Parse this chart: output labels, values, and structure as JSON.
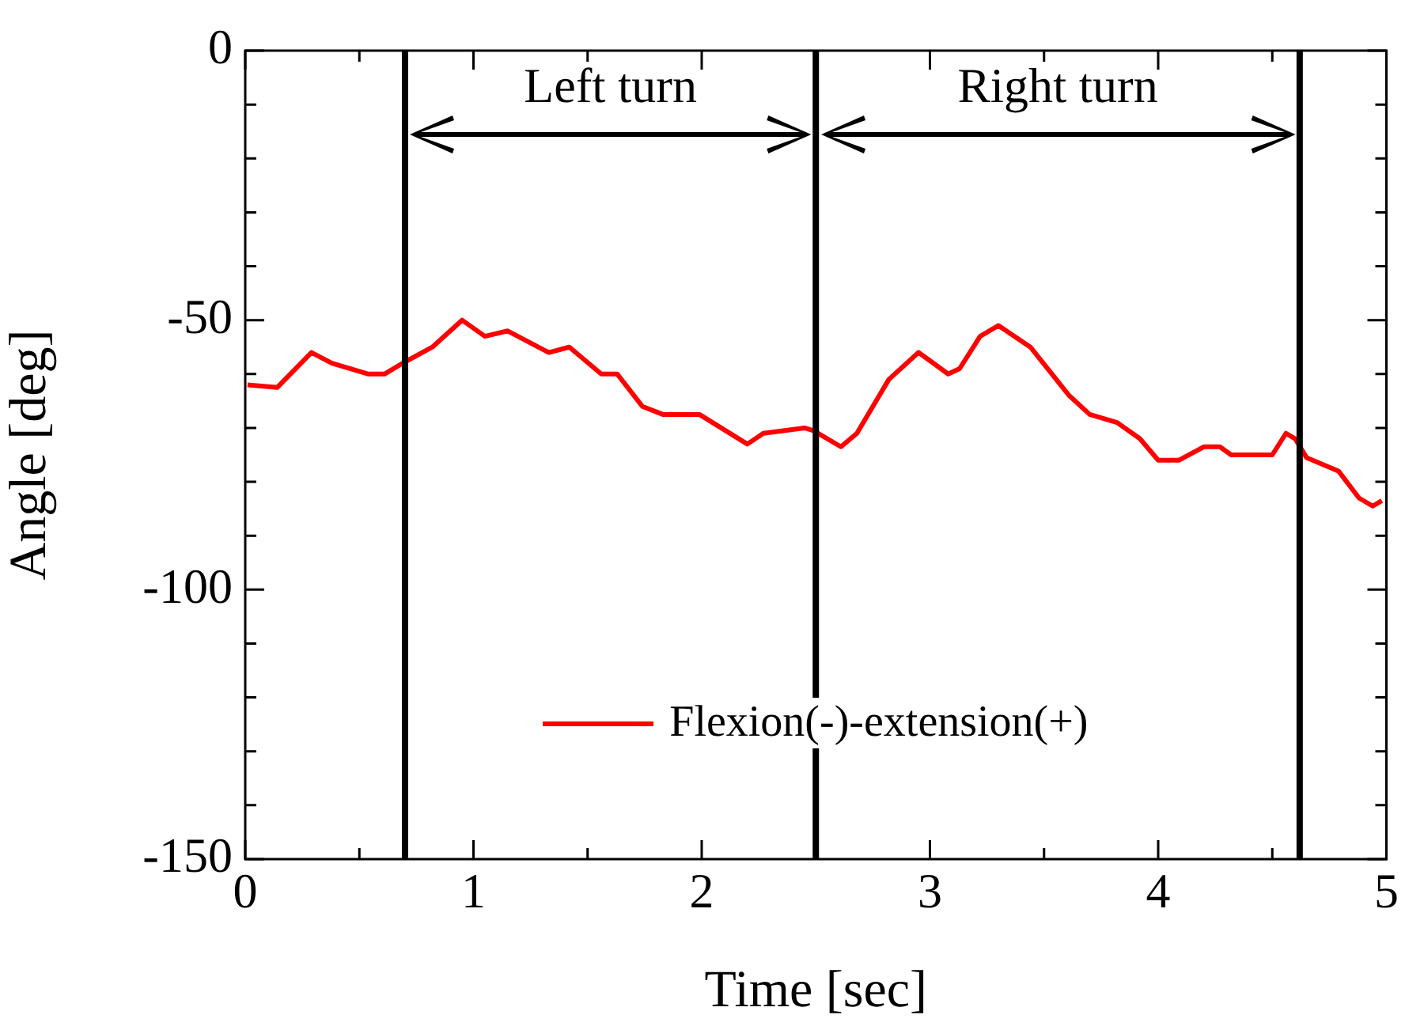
{
  "chart_data": {
    "type": "line",
    "xlabel": "Time [sec]",
    "ylabel": "Angle [deg]",
    "xlim": [
      0,
      5
    ],
    "ylim": [
      -150,
      0
    ],
    "xticks": [
      0,
      {
        "value": 0.5,
        "label": null
      },
      1,
      {
        "value": 1.5,
        "label": null
      },
      2,
      {
        "value": 2.5,
        "label": null
      },
      3,
      {
        "value": 3.5,
        "label": null
      },
      4,
      {
        "value": 4.5,
        "label": null
      },
      5
    ],
    "yticks": [
      -150,
      {
        "value": -140,
        "label": null
      },
      {
        "value": -130,
        "label": null
      },
      {
        "value": -120,
        "label": null
      },
      {
        "value": -110,
        "label": null
      },
      -100,
      {
        "value": -90,
        "label": null
      },
      {
        "value": -80,
        "label": null
      },
      {
        "value": -70,
        "label": null
      },
      {
        "value": -60,
        "label": null
      },
      -50,
      {
        "value": -40,
        "label": null
      },
      {
        "value": -30,
        "label": null
      },
      {
        "value": -20,
        "label": null
      },
      {
        "value": -10,
        "label": null
      },
      0
    ],
    "grid": false,
    "legend": "bottom",
    "line_style": "solid",
    "marker": "none",
    "ref_lines": [
      {
        "axis": "x",
        "value": 0.7,
        "color": "#000000"
      },
      {
        "axis": "x",
        "value": 2.5,
        "color": "#000000"
      },
      {
        "axis": "x",
        "value": 4.62,
        "color": "#000000"
      }
    ],
    "annotations": [
      "Left turn",
      "Right turn"
    ],
    "series": [
      {
        "name": "Flexion(-)-extension(+)",
        "color": "#ff0000",
        "x": [
          0.01,
          0.14,
          0.29,
          0.38,
          0.54,
          0.61,
          0.69,
          0.82,
          0.95,
          1.05,
          1.15,
          1.33,
          1.42,
          1.56,
          1.63,
          1.74,
          1.83,
          1.99,
          2.2,
          2.27,
          2.45,
          2.49,
          2.61,
          2.68,
          2.82,
          2.95,
          3.08,
          3.13,
          3.22,
          3.3,
          3.44,
          3.61,
          3.7,
          3.82,
          3.92,
          4.0,
          4.09,
          4.2,
          4.27,
          4.32,
          4.46,
          4.5,
          4.56,
          4.6,
          4.65,
          4.79,
          4.88,
          4.94,
          4.98
        ],
        "values": [
          -62,
          -62.5,
          -56,
          -58,
          -60,
          -60,
          -58,
          -55,
          -50,
          -53,
          -52,
          -56,
          -55,
          -60,
          -60,
          -66,
          -67.5,
          -67.5,
          -73,
          -71,
          -70,
          -70.5,
          -73.5,
          -71,
          -61,
          -56,
          -60,
          -59,
          -53,
          -51,
          -55,
          -64,
          -67.5,
          -69,
          -72,
          -76,
          -76,
          -73.5,
          -73.5,
          -75,
          -75,
          -75,
          -71,
          -72,
          -75.5,
          -78,
          -83,
          -84.5,
          -83.5
        ]
      }
    ]
  }
}
